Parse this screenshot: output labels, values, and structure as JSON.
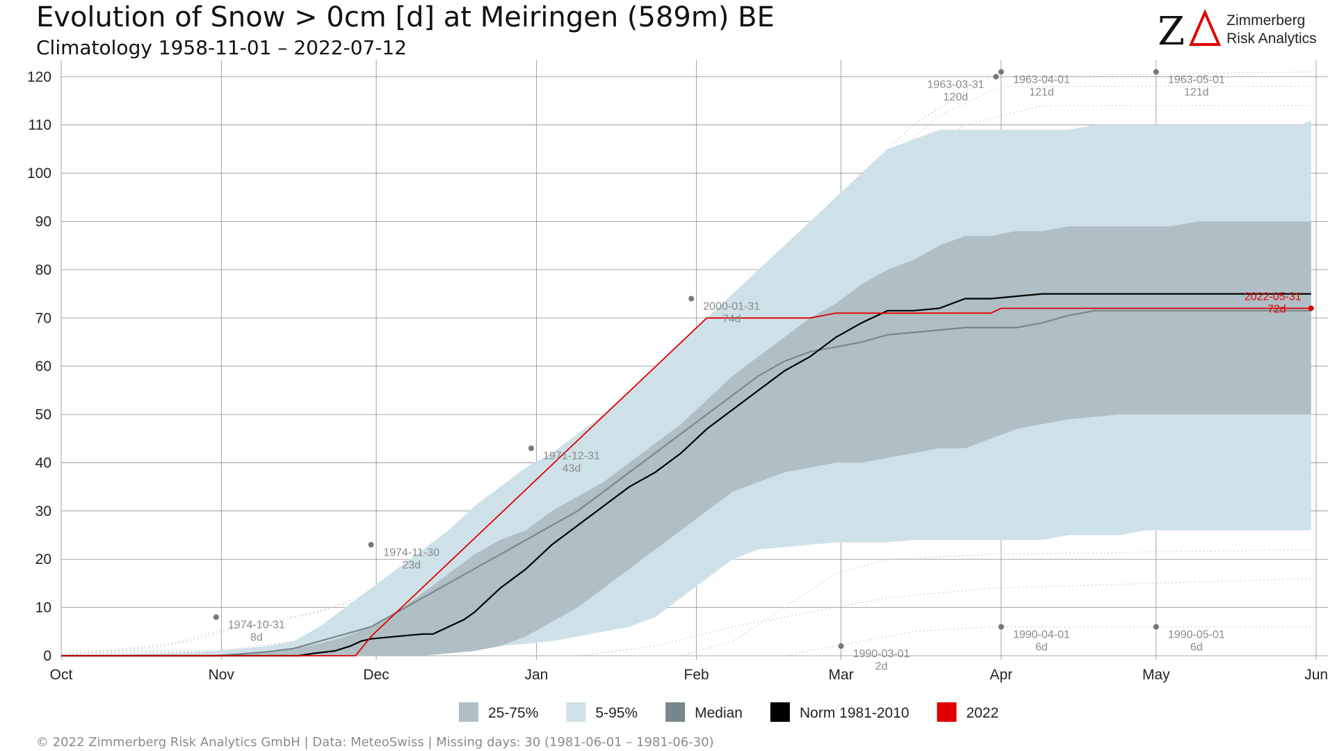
{
  "title": "Evolution of Snow > 0cm [d] at Meiringen (589m) BE",
  "subtitle": "Climatology 1958-11-01 – 2022-07-12",
  "logo": {
    "mark": "ZA",
    "line1": "Zimmerberg",
    "line2": "Risk Analytics"
  },
  "footer": "©  2022 Zimmerberg Risk Analytics GmbH | Data: MeteoSwiss | Missing days: 30 (1981-06-01 – 1981-06-30)",
  "colors": {
    "band_5_95": "#cfe1e8",
    "band_25_75": "#afbfc5",
    "median": "#77878c",
    "norm": "#000000",
    "year2022": "#e00000",
    "grid": "#8c8c8c",
    "dotted": "#c8c8c8"
  },
  "chart_data": {
    "type": "area",
    "xlabel": "",
    "ylabel": "",
    "x_unit": "days since Oct 1",
    "xlim": [
      0,
      243
    ],
    "ylim": [
      0,
      120
    ],
    "grid": true,
    "y_ticks": [
      0,
      10,
      20,
      30,
      40,
      50,
      60,
      70,
      80,
      90,
      100,
      110,
      120
    ],
    "x_ticks": [
      {
        "label": "Oct",
        "day": 0
      },
      {
        "label": "Nov",
        "day": 31
      },
      {
        "label": "Dec",
        "day": 61
      },
      {
        "label": "Jan",
        "day": 92
      },
      {
        "label": "Feb",
        "day": 123
      },
      {
        "label": "Mar",
        "day": 151
      },
      {
        "label": "Apr",
        "day": 182
      },
      {
        "label": "May",
        "day": 212
      },
      {
        "label": "Jun",
        "day": 243
      }
    ],
    "legend": {
      "position": "bottom",
      "items": [
        {
          "label": "25-75%",
          "color": "#afbfc5"
        },
        {
          "label": "5-95%",
          "color": "#cfe1e8"
        },
        {
          "label": "Median",
          "color": "#77878c"
        },
        {
          "label": "Norm 1981-2010",
          "color": "#000000"
        },
        {
          "label": "2022",
          "color": "#e00000"
        }
      ]
    },
    "band_5_95": {
      "x": [
        0,
        20,
        30,
        40,
        45,
        50,
        55,
        60,
        65,
        70,
        75,
        80,
        85,
        90,
        95,
        100,
        105,
        110,
        115,
        120,
        125,
        130,
        135,
        140,
        145,
        150,
        155,
        160,
        165,
        170,
        175,
        180,
        185,
        190,
        195,
        200,
        205,
        210,
        215,
        220,
        225,
        230,
        235,
        240,
        242
      ],
      "upper": [
        0,
        0.5,
        1,
        2,
        3,
        6,
        10,
        14,
        18,
        22,
        26,
        31,
        35,
        39,
        42,
        46,
        50,
        55,
        60,
        65,
        70,
        75,
        80,
        85,
        90,
        95,
        100,
        105,
        107,
        109,
        109,
        109,
        109,
        109,
        109,
        110,
        110,
        110,
        110,
        110,
        110,
        110,
        110,
        110,
        111
      ],
      "lower": [
        0,
        0,
        0,
        0,
        0,
        0,
        0,
        0,
        0,
        0,
        0.5,
        1,
        2,
        2.5,
        3,
        4,
        5,
        6,
        8,
        12,
        16,
        20,
        22,
        22.5,
        23,
        23.5,
        23.5,
        23.5,
        24,
        24,
        24,
        24,
        24,
        24,
        25,
        25,
        25,
        26,
        26,
        26,
        26,
        26,
        26,
        26,
        26
      ]
    },
    "band_25_75": {
      "x": [
        0,
        30,
        35,
        40,
        45,
        50,
        55,
        60,
        65,
        70,
        75,
        80,
        85,
        90,
        95,
        100,
        105,
        110,
        115,
        120,
        125,
        130,
        135,
        140,
        145,
        150,
        155,
        160,
        165,
        170,
        175,
        180,
        185,
        190,
        195,
        200,
        205,
        210,
        215,
        220,
        225,
        230,
        235,
        240,
        242
      ],
      "upper": [
        0,
        0,
        0.5,
        1,
        1.5,
        2.5,
        4,
        6,
        9,
        13,
        17,
        21,
        24,
        26,
        30,
        33,
        36,
        40,
        44,
        48,
        53,
        58,
        62,
        66,
        70,
        73,
        77,
        80,
        82,
        85,
        87,
        87,
        88,
        88,
        89,
        89,
        89,
        89,
        89,
        90,
        90,
        90,
        90,
        90,
        90
      ],
      "lower": [
        0,
        0,
        0,
        0,
        0,
        0,
        0,
        0,
        0,
        0,
        0.5,
        1,
        2,
        4,
        7,
        10,
        14,
        18,
        22,
        26,
        30,
        34,
        36,
        38,
        39,
        40,
        40,
        41,
        42,
        43,
        43,
        45,
        47,
        48,
        49,
        49.5,
        50,
        50,
        50,
        50,
        50,
        50,
        50,
        50,
        50
      ]
    },
    "median": {
      "x": [
        0,
        30,
        34,
        40,
        45,
        50,
        55,
        60,
        65,
        70,
        75,
        80,
        85,
        90,
        95,
        100,
        105,
        110,
        115,
        120,
        125,
        130,
        135,
        140,
        145,
        150,
        155,
        160,
        165,
        170,
        175,
        180,
        185,
        190,
        195,
        200,
        205,
        210,
        215,
        220,
        225,
        230,
        235,
        240,
        242
      ],
      "values": [
        0,
        0,
        0.3,
        0.8,
        1.5,
        3,
        4.5,
        6,
        9,
        12,
        15,
        18,
        21,
        24,
        27,
        30,
        34,
        38,
        42,
        46,
        50,
        54,
        58,
        61,
        63,
        64,
        65,
        66.5,
        67,
        67.5,
        68,
        68,
        68,
        69,
        70.5,
        71.5,
        71.5,
        71.5,
        71.5,
        71.5,
        71.5,
        71.5,
        71.5,
        71.5,
        71.5
      ]
    },
    "norm_1981_2010": {
      "x": [
        0,
        46,
        49,
        53,
        56,
        58,
        60,
        65,
        70,
        72,
        75,
        78,
        80,
        85,
        90,
        95,
        100,
        105,
        110,
        115,
        120,
        125,
        130,
        135,
        140,
        145,
        150,
        155,
        160,
        163,
        165,
        170,
        175,
        178,
        180,
        185,
        190,
        195,
        200,
        205,
        210,
        215,
        220,
        225,
        230,
        235,
        240,
        242
      ],
      "values": [
        0,
        0,
        0.5,
        1,
        2,
        3,
        3.5,
        4,
        4.5,
        4.5,
        6,
        7.5,
        9,
        14,
        18,
        23,
        27,
        31,
        35,
        38,
        42,
        47,
        51,
        55,
        59,
        62,
        66,
        69,
        71.5,
        71.5,
        71.5,
        72,
        74,
        74,
        74,
        74.5,
        75,
        75,
        75,
        75,
        75,
        75,
        75,
        75,
        75,
        75,
        75,
        75
      ]
    },
    "year_2022": {
      "x": [
        0,
        57,
        60,
        125,
        145,
        150,
        160,
        170,
        180,
        182,
        190,
        200,
        210,
        220,
        230,
        242
      ],
      "values": [
        0,
        0,
        4,
        70,
        70,
        71,
        71,
        71,
        71,
        72,
        72,
        72,
        72,
        72,
        72,
        72
      ]
    },
    "annotations": [
      {
        "label": "1974-10-31",
        "value": "8d",
        "x": 30,
        "y": 8
      },
      {
        "label": "1974-11-30",
        "value": "23d",
        "x": 60,
        "y": 23
      },
      {
        "label": "1971-12-31",
        "value": "43d",
        "x": 91,
        "y": 43
      },
      {
        "label": "2000-01-31",
        "value": "74d",
        "x": 122,
        "y": 74
      },
      {
        "label": "1963-03-31",
        "value": "120d",
        "x": 181,
        "y": 120
      },
      {
        "label": "1963-04-01",
        "value": "121d",
        "x": 182,
        "y": 121
      },
      {
        "label": "1963-05-01",
        "value": "121d",
        "x": 212,
        "y": 121
      },
      {
        "label": "1990-03-01",
        "value": "2d",
        "x": 151,
        "y": 2
      },
      {
        "label": "1990-04-01",
        "value": "6d",
        "x": 182,
        "y": 6
      },
      {
        "label": "1990-05-01",
        "value": "6d",
        "x": 212,
        "y": 6
      },
      {
        "label": "2022-05-31",
        "value": "72d",
        "x": 242,
        "y": 72,
        "highlight": true
      }
    ]
  }
}
